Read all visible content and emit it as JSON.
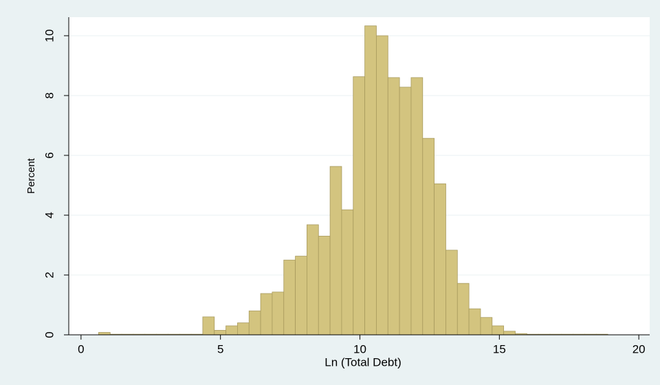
{
  "chart_data": {
    "type": "histogram",
    "x_label": "Ln (Total Debt)",
    "y_label": "Percent",
    "bins": [
      0.63,
      1.045,
      1.46,
      1.875,
      2.29,
      2.705,
      3.12,
      3.535,
      3.95,
      4.365,
      4.78,
      5.195,
      5.61,
      6.025,
      6.44,
      6.855,
      7.27,
      7.685,
      8.1,
      8.515,
      8.93,
      9.345,
      9.76,
      10.175,
      10.59,
      11.005,
      11.42,
      11.835,
      12.25,
      12.665,
      13.08,
      13.495,
      13.91,
      14.325,
      14.74,
      15.155,
      15.57,
      15.985,
      16.4,
      16.815,
      17.23,
      17.645,
      18.06,
      18.475,
      18.89
    ],
    "values": [
      0.08,
      0.02,
      0.02,
      0.02,
      0.02,
      0.02,
      0.02,
      0.02,
      0.02,
      0.6,
      0.15,
      0.3,
      0.4,
      0.8,
      1.38,
      1.43,
      2.5,
      2.63,
      3.68,
      3.3,
      5.63,
      4.18,
      8.63,
      10.33,
      10.0,
      8.6,
      8.28,
      8.6,
      6.57,
      5.05,
      2.83,
      1.72,
      0.87,
      0.58,
      0.3,
      0.12,
      0.04,
      0.02,
      0.02,
      0.02,
      0.02,
      0.02,
      0.02,
      0.02
    ],
    "color": "#d3c47f",
    "edge_color": "#a89a5e",
    "xlim": [
      -0.44,
      20.39
    ],
    "ylim": [
      0,
      10.62
    ],
    "xticks": [
      0,
      5,
      10,
      15,
      20
    ],
    "yticks": [
      0,
      2,
      4,
      6,
      8,
      10
    ],
    "grid": true
  }
}
